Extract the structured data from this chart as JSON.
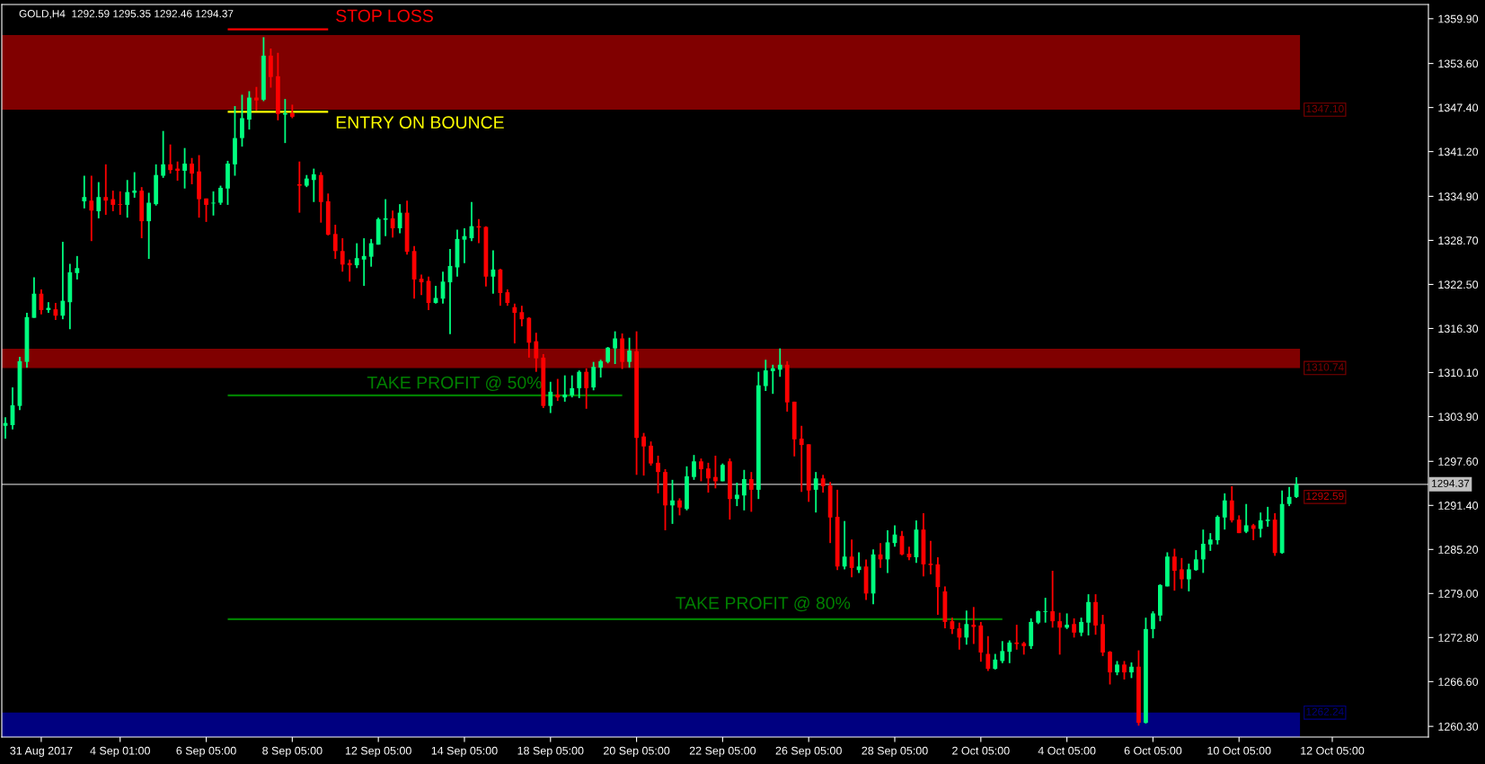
{
  "chart_data": {
    "type": "candlestick",
    "title": "GOLD,H4  1292.59 1295.35 1292.46 1294.37",
    "categories": [
      null,
      null,
      null,
      null,
      null,
      "31 Aug 2017",
      null,
      null,
      null,
      null,
      null,
      null,
      null,
      null,
      null,
      null,
      "4 Sep 01:00",
      null,
      null,
      null,
      null,
      null,
      null,
      null,
      null,
      null,
      null,
      null,
      "6 Sep 05:00",
      null,
      null,
      null,
      null,
      null,
      null,
      null,
      null,
      null,
      null,
      null,
      "8 Sep 05:00",
      null,
      null,
      null,
      null,
      null,
      null,
      null,
      null,
      null,
      null,
      null,
      "12 Sep 05:00",
      null,
      null,
      null,
      null,
      null,
      null,
      null,
      null,
      null,
      null,
      null,
      "14 Sep 05:00",
      null,
      null,
      null,
      null,
      null,
      null,
      null,
      null,
      null,
      null,
      null,
      "18 Sep 05:00",
      null,
      null,
      null,
      null,
      null,
      null,
      null,
      null,
      null,
      null,
      null,
      "20 Sep 05:00",
      null,
      null,
      null,
      null,
      null,
      null,
      null,
      null,
      null,
      null,
      null,
      "22 Sep 05:00",
      null,
      null,
      null,
      null,
      null,
      null,
      null,
      null,
      null,
      null,
      null,
      "26 Sep 05:00",
      null,
      null,
      null,
      null,
      null,
      null,
      null,
      null,
      null,
      null,
      null,
      "28 Sep 05:00",
      null,
      null,
      null,
      null,
      null,
      null,
      null,
      null,
      null,
      null,
      null,
      "2 Oct 05:00",
      null,
      null,
      null,
      null,
      null,
      null,
      null,
      null,
      null,
      null,
      null,
      "4 Oct 05:00",
      null,
      null,
      null,
      null,
      null,
      null,
      null,
      null,
      null,
      null,
      null,
      "6 Oct 05:00",
      null,
      null,
      null,
      null,
      null,
      null,
      null,
      null,
      null,
      null,
      null,
      "10 Oct 05:00",
      null,
      null,
      null,
      null,
      null,
      null,
      null,
      null,
      null,
      null,
      null,
      null,
      "12 Oct 05:00",
      null,
      null,
      null,
      null,
      null,
      null,
      null,
      null,
      null,
      null,
      null,
      null,
      null
    ],
    "ohlc": [
      [
        1302.6,
        1303.8,
        1300.8,
        1303.0
      ],
      [
        1302.7,
        1308.0,
        1302.1,
        1305.5
      ],
      [
        1305.4,
        1312.3,
        1304.8,
        1311.7
      ],
      [
        1311.6,
        1318.5,
        1310.8,
        1317.9
      ],
      [
        1317.8,
        1323.5,
        1317.8,
        1321.2
      ],
      [
        1321.2,
        1321.8,
        1318.3,
        1318.9
      ],
      [
        1318.9,
        1320.0,
        1318.5,
        1319.2
      ],
      [
        1319.0,
        1319.9,
        1317.5,
        1318.1
      ],
      [
        1318.1,
        1328.5,
        1317.6,
        1320.2
      ],
      [
        1320.0,
        1325.4,
        1316.2,
        1324.2
      ],
      [
        1324.1,
        1326.5,
        1323.2,
        1324.8
      ],
      [
        1334.2,
        1337.8,
        1333.2,
        1334.8
      ],
      [
        1334.3,
        1337.8,
        1328.6,
        1332.9
      ],
      [
        1332.8,
        1336.9,
        1331.8,
        1334.8
      ],
      [
        1334.8,
        1339.4,
        1332.3,
        1334.3
      ],
      [
        1334.5,
        1335.7,
        1332.8,
        1333.7
      ],
      [
        1333.8,
        1335.6,
        1332.3,
        1333.7
      ],
      [
        1333.7,
        1337.2,
        1331.9,
        1335.5
      ],
      [
        1335.4,
        1338.3,
        1334.7,
        1335.7
      ],
      [
        1335.7,
        1336.2,
        1329.0,
        1331.4
      ],
      [
        1331.4,
        1335.4,
        1326.1,
        1334.0
      ],
      [
        1333.8,
        1339.4,
        1333.6,
        1337.9
      ],
      [
        1337.8,
        1344.1,
        1337.5,
        1339.4
      ],
      [
        1339.4,
        1342.2,
        1338.1,
        1338.6
      ],
      [
        1338.8,
        1339.8,
        1337.1,
        1338.5
      ],
      [
        1338.5,
        1341.7,
        1336.0,
        1339.5
      ],
      [
        1339.5,
        1340.3,
        1336.6,
        1338.1
      ],
      [
        1338.4,
        1340.7,
        1331.9,
        1334.5
      ],
      [
        1334.6,
        1334.6,
        1331.3,
        1333.7
      ],
      [
        1333.9,
        1335.6,
        1332.2,
        1334.0
      ],
      [
        1334.0,
        1336.4,
        1333.7,
        1336.1
      ],
      [
        1336.0,
        1339.9,
        1333.7,
        1339.5
      ],
      [
        1339.4,
        1347.6,
        1337.8,
        1343.1
      ],
      [
        1343.1,
        1349.2,
        1341.9,
        1345.9
      ],
      [
        1345.7,
        1349.7,
        1344.3,
        1348.8
      ],
      [
        1348.8,
        1350.3,
        1347.0,
        1348.4
      ],
      [
        1348.5,
        1357.3,
        1348.3,
        1354.7
      ],
      [
        1354.7,
        1355.7,
        1350.2,
        1351.7
      ],
      [
        1351.8,
        1355.1,
        1345.6,
        1346.5
      ],
      [
        1346.4,
        1348.6,
        1342.4,
        1346.6
      ],
      [
        1346.6,
        1347.8,
        1345.9,
        1346.1
      ],
      [
        1336.6,
        1339.8,
        1332.6,
        1336.4
      ],
      [
        1336.4,
        1337.9,
        1336.2,
        1337.4
      ],
      [
        1337.2,
        1338.8,
        1334.1,
        1338.0
      ],
      [
        1337.9,
        1338.3,
        1331.2,
        1334.1
      ],
      [
        1334.2,
        1335.3,
        1329.4,
        1329.5
      ],
      [
        1329.6,
        1330.9,
        1326.1,
        1327.2
      ],
      [
        1327.2,
        1329.0,
        1324.3,
        1325.3
      ],
      [
        1325.5,
        1326.0,
        1322.9,
        1325.2
      ],
      [
        1325.2,
        1328.3,
        1324.8,
        1326.2
      ],
      [
        1326.0,
        1329.0,
        1322.3,
        1326.5
      ],
      [
        1326.4,
        1328.9,
        1325.0,
        1328.3
      ],
      [
        1328.1,
        1331.9,
        1328.1,
        1331.7
      ],
      [
        1331.6,
        1334.5,
        1329.3,
        1331.8
      ],
      [
        1331.8,
        1332.9,
        1329.1,
        1330.4
      ],
      [
        1330.4,
        1333.8,
        1329.7,
        1332.6
      ],
      [
        1332.6,
        1334.3,
        1326.7,
        1327.1
      ],
      [
        1327.2,
        1327.9,
        1320.5,
        1323.2
      ],
      [
        1323.3,
        1323.9,
        1321.0,
        1322.8
      ],
      [
        1323.0,
        1323.6,
        1318.9,
        1319.9
      ],
      [
        1319.9,
        1322.3,
        1319.8,
        1320.6
      ],
      [
        1320.5,
        1324.3,
        1319.8,
        1322.9
      ],
      [
        1322.8,
        1327.5,
        1315.5,
        1325.1
      ],
      [
        1324.9,
        1330.2,
        1323.6,
        1328.9
      ],
      [
        1328.8,
        1330.4,
        1325.5,
        1329.3
      ],
      [
        1329.0,
        1334.1,
        1328.6,
        1330.7
      ],
      [
        1330.7,
        1331.7,
        1328.3,
        1330.5
      ],
      [
        1330.6,
        1330.7,
        1322.2,
        1323.6
      ],
      [
        1323.6,
        1327.3,
        1321.2,
        1324.6
      ],
      [
        1324.6,
        1324.7,
        1319.5,
        1321.3
      ],
      [
        1321.4,
        1321.8,
        1319.5,
        1319.9
      ],
      [
        1319.3,
        1319.8,
        1314.2,
        1318.5
      ],
      [
        1318.6,
        1319.5,
        1316.6,
        1317.6
      ],
      [
        1317.8,
        1317.9,
        1312.2,
        1314.3
      ],
      [
        1314.5,
        1315.7,
        1310.2,
        1312.1
      ],
      [
        1312.2,
        1312.7,
        1305.1,
        1305.4
      ],
      [
        1305.4,
        1308.8,
        1304.4,
        1307.4
      ],
      [
        1307.0,
        1309.2,
        1306.1,
        1306.6
      ],
      [
        1306.6,
        1309.7,
        1306.0,
        1307.0
      ],
      [
        1306.9,
        1309.7,
        1306.6,
        1307.9
      ],
      [
        1307.9,
        1310.4,
        1306.5,
        1310.2
      ],
      [
        1310.2,
        1310.7,
        1305.0,
        1307.9
      ],
      [
        1308.0,
        1311.6,
        1307.6,
        1310.9
      ],
      [
        1310.8,
        1311.9,
        1309.4,
        1311.7
      ],
      [
        1311.6,
        1313.7,
        1311.4,
        1313.6
      ],
      [
        1313.5,
        1315.9,
        1311.3,
        1314.9
      ],
      [
        1314.9,
        1315.6,
        1310.6,
        1311.6
      ],
      [
        1311.6,
        1315.0,
        1310.8,
        1313.2
      ],
      [
        1313.1,
        1315.9,
        1295.7,
        1300.9
      ],
      [
        1301.1,
        1301.6,
        1295.6,
        1299.7
      ],
      [
        1299.8,
        1300.4,
        1297.0,
        1297.3
      ],
      [
        1297.4,
        1298.4,
        1293.1,
        1296.1
      ],
      [
        1296.1,
        1296.5,
        1287.9,
        1291.4
      ],
      [
        1291.4,
        1295.0,
        1288.8,
        1292.1
      ],
      [
        1292.1,
        1292.4,
        1290.0,
        1291.1
      ],
      [
        1290.9,
        1296.9,
        1290.7,
        1295.5
      ],
      [
        1295.4,
        1298.5,
        1295.0,
        1297.6
      ],
      [
        1297.6,
        1298.0,
        1294.8,
        1296.5
      ],
      [
        1296.6,
        1297.4,
        1293.2,
        1295.2
      ],
      [
        1295.4,
        1298.4,
        1293.8,
        1294.8
      ],
      [
        1294.8,
        1297.3,
        1294.8,
        1297.1
      ],
      [
        1297.6,
        1298.0,
        1289.4,
        1292.3
      ],
      [
        1292.3,
        1294.6,
        1291.3,
        1292.9
      ],
      [
        1292.8,
        1296.4,
        1290.7,
        1295.1
      ],
      [
        1295.1,
        1296.1,
        1290.5,
        1293.6
      ],
      [
        1293.6,
        1310.2,
        1292.3,
        1308.3
      ],
      [
        1308.2,
        1311.9,
        1307.5,
        1310.4
      ],
      [
        1310.3,
        1311.2,
        1307.1,
        1310.7
      ],
      [
        1310.5,
        1313.5,
        1309.5,
        1311.2
      ],
      [
        1311.2,
        1311.7,
        1304.6,
        1305.9
      ],
      [
        1306.0,
        1306.0,
        1298.3,
        1300.7
      ],
      [
        1300.8,
        1302.6,
        1293.3,
        1299.9
      ],
      [
        1300.0,
        1300.0,
        1291.9,
        1293.5
      ],
      [
        1293.6,
        1296.1,
        1290.4,
        1295.2
      ],
      [
        1295.2,
        1295.7,
        1293.2,
        1294.1
      ],
      [
        1294.2,
        1294.7,
        1286.1,
        1289.7
      ],
      [
        1289.8,
        1293.6,
        1282.3,
        1282.8
      ],
      [
        1282.8,
        1289.2,
        1282.4,
        1284.2
      ],
      [
        1284.2,
        1286.6,
        1281.3,
        1282.6
      ],
      [
        1282.3,
        1284.8,
        1281.9,
        1282.8
      ],
      [
        1282.8,
        1283.8,
        1278.1,
        1279.0
      ],
      [
        1279.0,
        1285.2,
        1277.5,
        1284.5
      ],
      [
        1284.5,
        1286.1,
        1282.6,
        1283.8
      ],
      [
        1283.8,
        1287.9,
        1281.9,
        1286.2
      ],
      [
        1286.1,
        1288.6,
        1285.6,
        1287.3
      ],
      [
        1287.1,
        1287.8,
        1284.4,
        1284.5
      ],
      [
        1284.6,
        1285.6,
        1283.7,
        1284.1
      ],
      [
        1284.1,
        1289.3,
        1283.3,
        1288.0
      ],
      [
        1288.0,
        1290.3,
        1281.4,
        1283.1
      ],
      [
        1283.2,
        1286.4,
        1281.7,
        1283.0
      ],
      [
        1283.1,
        1284.1,
        1276.0,
        1279.9
      ],
      [
        1279.3,
        1280.0,
        1274.1,
        1275.0
      ],
      [
        1275.1,
        1275.6,
        1273.3,
        1274.0
      ],
      [
        1274.1,
        1274.9,
        1271.1,
        1272.8
      ],
      [
        1272.8,
        1276.6,
        1271.8,
        1274.7
      ],
      [
        1274.6,
        1277.1,
        1271.9,
        1274.3
      ],
      [
        1274.5,
        1275.0,
        1269.4,
        1270.7
      ],
      [
        1270.5,
        1273.0,
        1268.1,
        1268.4
      ],
      [
        1268.4,
        1270.5,
        1268.3,
        1269.7
      ],
      [
        1269.5,
        1272.3,
        1269.2,
        1270.9
      ],
      [
        1270.8,
        1272.4,
        1269.2,
        1272.1
      ],
      [
        1272.1,
        1274.6,
        1271.1,
        1271.9
      ],
      [
        1272.0,
        1272.2,
        1270.4,
        1271.6
      ],
      [
        1271.6,
        1275.5,
        1271.2,
        1275.0
      ],
      [
        1274.9,
        1276.6,
        1274.7,
        1276.5
      ],
      [
        1276.4,
        1278.4,
        1274.9,
        1276.5
      ],
      [
        1276.5,
        1282.2,
        1274.2,
        1275.1
      ],
      [
        1275.1,
        1276.3,
        1270.4,
        1274.2
      ],
      [
        1274.2,
        1276.2,
        1274.0,
        1274.6
      ],
      [
        1274.7,
        1275.5,
        1272.8,
        1273.5
      ],
      [
        1273.5,
        1275.6,
        1273.0,
        1275.0
      ],
      [
        1274.9,
        1278.9,
        1273.1,
        1277.8
      ],
      [
        1277.8,
        1278.9,
        1273.2,
        1274.5
      ],
      [
        1274.7,
        1276.0,
        1270.2,
        1270.7
      ],
      [
        1270.8,
        1270.9,
        1266.2,
        1267.9
      ],
      [
        1267.9,
        1269.5,
        1267.5,
        1269.0
      ],
      [
        1269.0,
        1269.5,
        1266.9,
        1267.9
      ],
      [
        1267.9,
        1269.3,
        1267.1,
        1268.7
      ],
      [
        1268.7,
        1271.0,
        1260.4,
        1260.8
      ],
      [
        1260.8,
        1275.6,
        1260.7,
        1274.0
      ],
      [
        1274.0,
        1276.5,
        1272.7,
        1276.2
      ],
      [
        1275.9,
        1280.3,
        1275.1,
        1280.2
      ],
      [
        1280.0,
        1284.8,
        1280.0,
        1284.2
      ],
      [
        1284.2,
        1285.3,
        1279.4,
        1282.2
      ],
      [
        1282.4,
        1284.0,
        1279.7,
        1281.0
      ],
      [
        1281.0,
        1283.2,
        1279.3,
        1282.4
      ],
      [
        1282.3,
        1285.1,
        1282.2,
        1283.8
      ],
      [
        1283.8,
        1288.0,
        1281.9,
        1286.0
      ],
      [
        1285.9,
        1287.5,
        1285.0,
        1286.6
      ],
      [
        1286.5,
        1290.0,
        1285.9,
        1289.8
      ],
      [
        1289.7,
        1293.1,
        1288.0,
        1292.1
      ],
      [
        1292.1,
        1294.1,
        1289.0,
        1289.3
      ],
      [
        1289.4,
        1290.0,
        1287.5,
        1287.5
      ],
      [
        1287.7,
        1291.6,
        1287.5,
        1288.6
      ],
      [
        1288.6,
        1288.8,
        1286.5,
        1288.1
      ],
      [
        1288.1,
        1290.4,
        1286.9,
        1289.3
      ],
      [
        1289.2,
        1291.2,
        1288.4,
        1289.4
      ],
      [
        1289.4,
        1290.3,
        1284.3,
        1284.7
      ],
      [
        1284.7,
        1293.5,
        1284.6,
        1291.6
      ],
      [
        1291.6,
        1294.0,
        1291.3,
        1292.6
      ],
      [
        1292.59,
        1295.35,
        1292.46,
        1294.37
      ],
      null,
      null,
      null,
      null,
      null,
      null,
      null,
      null,
      null,
      null,
      null,
      null,
      null,
      null,
      null,
      null,
      null,
      null
    ],
    "colors": [
      "#00ff7f",
      "#00ff7f",
      "#00ff7f",
      "#00ff7f",
      "#00ff7f",
      "#ff0000",
      "#00ff7f",
      "#ff0000",
      "#00ff7f",
      "#00ff7f",
      "#00ff7f",
      "#00ff7f",
      "#ff0000",
      "#00ff7f",
      "#ff0000",
      "#ff0000",
      "#ff0000",
      "#00ff7f",
      "#00ff7f",
      "#ff0000",
      "#00ff7f",
      "#00ff7f",
      "#00ff7f",
      "#ff0000",
      "#ff0000",
      "#00ff7f",
      "#ff0000",
      "#ff0000",
      "#ff0000",
      "#00ff7f",
      "#00ff7f",
      "#00ff7f",
      "#00ff7f",
      "#00ff7f",
      "#00ff7f",
      "#ff0000",
      "#00ff7f",
      "#ff0000",
      "#ff0000",
      "#00ff7f",
      "#ff0000",
      "#ff0000",
      "#00ff7f",
      "#00ff7f",
      "#ff0000",
      "#ff0000",
      "#ff0000",
      "#ff0000",
      "#ff0000",
      "#00ff7f",
      "#00ff7f",
      "#00ff7f",
      "#00ff7f",
      "#00ff7f",
      "#ff0000",
      "#00ff7f",
      "#ff0000",
      "#ff0000",
      "#ff0000",
      "#ff0000",
      "#00ff7f",
      "#00ff7f",
      "#00ff7f",
      "#00ff7f",
      "#00ff7f",
      "#00ff7f",
      "#ff0000",
      "#ff0000",
      "#00ff7f",
      "#ff0000",
      "#ff0000",
      "#ff0000",
      "#ff0000",
      "#ff0000",
      "#ff0000",
      "#ff0000",
      "#00ff7f",
      "#ff0000",
      "#00ff7f",
      "#00ff7f",
      "#00ff7f",
      "#ff0000",
      "#00ff7f",
      "#00ff7f",
      "#00ff7f",
      "#00ff7f",
      "#ff0000",
      "#00ff7f",
      "#ff0000",
      "#ff0000",
      "#ff0000",
      "#ff0000",
      "#ff0000",
      "#00ff7f",
      "#ff0000",
      "#00ff7f",
      "#00ff7f",
      "#ff0000",
      "#ff0000",
      "#ff0000",
      "#00ff7f",
      "#ff0000",
      "#00ff7f",
      "#00ff7f",
      "#ff0000",
      "#00ff7f",
      "#00ff7f",
      "#00ff7f",
      "#00ff7f",
      "#ff0000",
      "#ff0000",
      "#ff0000",
      "#ff0000",
      "#00ff7f",
      "#ff0000",
      "#ff0000",
      "#ff0000",
      "#00ff7f",
      "#ff0000",
      "#00ff7f",
      "#ff0000",
      "#00ff7f",
      "#ff0000",
      "#00ff7f",
      "#00ff7f",
      "#ff0000",
      "#ff0000",
      "#00ff7f",
      "#ff0000",
      "#ff0000",
      "#ff0000",
      "#ff0000",
      "#ff0000",
      "#ff0000",
      "#00ff7f",
      "#ff0000",
      "#ff0000",
      "#ff0000",
      "#00ff7f",
      "#00ff7f",
      "#00ff7f",
      "#ff0000",
      "#ff0000",
      "#00ff7f",
      "#00ff7f",
      "#00ff7f",
      "#ff0000",
      "#ff0000",
      "#00ff7f",
      "#ff0000",
      "#00ff7f",
      "#00ff7f",
      "#ff0000",
      "#ff0000",
      "#ff0000",
      "#00ff7f",
      "#ff0000",
      "#00ff7f",
      "#ff0000",
      "#00ff7f",
      "#00ff7f",
      "#00ff7f",
      "#00ff7f",
      "#ff0000",
      "#ff0000",
      "#00ff7f",
      "#00ff7f",
      "#00ff7f",
      "#00ff7f",
      "#00ff7f",
      "#00ff7f",
      "#ff0000",
      "#ff0000",
      "#00ff7f",
      "#ff0000",
      "#00ff7f",
      "#00ff7f",
      "#ff0000",
      "#00ff7f",
      "#00ff7f",
      "#00ff7f",
      null,
      null,
      null,
      null,
      null,
      null,
      null,
      null,
      null,
      null,
      null,
      null,
      null,
      null,
      null,
      null,
      null,
      null
    ],
    "series": [
      {
        "type": "line",
        "name": "STOP LOSS",
        "color": "#ff0000",
        "values": [
          null,
          null,
          null,
          null,
          null,
          null,
          null,
          null,
          null,
          null,
          null,
          null,
          null,
          null,
          null,
          null,
          null,
          null,
          null,
          null,
          null,
          null,
          null,
          null,
          null,
          null,
          null,
          null,
          null,
          null,
          null,
          1358.4,
          1358.4,
          1358.4,
          1358.4,
          1358.4,
          1358.4,
          1358.4,
          1358.4,
          1358.4,
          1358.4,
          1358.4,
          1358.4,
          1358.4,
          1358.4,
          1358.4,
          null,
          null,
          null,
          null,
          null,
          null,
          null,
          null,
          null,
          null,
          null,
          null,
          null,
          null,
          null,
          null,
          null,
          null,
          null,
          null,
          null,
          null,
          null,
          null,
          null,
          null,
          null,
          null,
          null,
          null,
          null,
          null,
          null,
          null,
          null,
          null,
          null,
          null,
          null,
          null,
          null,
          null,
          null,
          null,
          null,
          null,
          null,
          null,
          null,
          null,
          null,
          null,
          null,
          null,
          null,
          null,
          null,
          null,
          null,
          null,
          null,
          null,
          null,
          null,
          null,
          null,
          null,
          null,
          null,
          null,
          null,
          null,
          null,
          null,
          null,
          null,
          null,
          null,
          null,
          null,
          null,
          null,
          null,
          null,
          null,
          null,
          null,
          null,
          null,
          null,
          null,
          null,
          null,
          null,
          null,
          null,
          null,
          null,
          null,
          null,
          null,
          null,
          null,
          null,
          null,
          null,
          null,
          null,
          null,
          null,
          null,
          null,
          null,
          null,
          null,
          null,
          null,
          null,
          null,
          null,
          null,
          null,
          null,
          null,
          null,
          null,
          null,
          null,
          null,
          null,
          null,
          null,
          null,
          null,
          null,
          null,
          null,
          null,
          null,
          null,
          null,
          null,
          null,
          null,
          null,
          null,
          null,
          null,
          null,
          null,
          null,
          null,
          null
        ]
      },
      {
        "type": "line",
        "name": "ENTRY ON BOUNCE",
        "color": "#ffff00",
        "values": [
          null,
          null,
          null,
          null,
          null,
          null,
          null,
          null,
          null,
          null,
          null,
          null,
          null,
          null,
          null,
          null,
          null,
          null,
          null,
          null,
          null,
          null,
          null,
          null,
          null,
          null,
          null,
          null,
          null,
          null,
          null,
          1346.8,
          1346.8,
          1346.8,
          1346.8,
          1346.8,
          1346.8,
          1346.8,
          1346.8,
          1346.8,
          1346.8,
          1346.8,
          1346.8,
          1346.8,
          1346.8,
          1346.8,
          null,
          null,
          null,
          null,
          null,
          null,
          null,
          null,
          null,
          null,
          null,
          null,
          null,
          null,
          null,
          null,
          null,
          null,
          null,
          null,
          null,
          null,
          null,
          null,
          null,
          null,
          null,
          null,
          null,
          null,
          null,
          null,
          null,
          null,
          null,
          null,
          null,
          null,
          null,
          null,
          null,
          null,
          null,
          null,
          null,
          null,
          null,
          null,
          null,
          null,
          null,
          null,
          null,
          null,
          null,
          null,
          null,
          null,
          null,
          null,
          null,
          null,
          null,
          null,
          null,
          null,
          null,
          null,
          null,
          null,
          null,
          null,
          null,
          null,
          null,
          null,
          null,
          null,
          null,
          null,
          null,
          null,
          null,
          null,
          null,
          null,
          null,
          null,
          null,
          null,
          null,
          null,
          null,
          null,
          null,
          null,
          null,
          null,
          null,
          null,
          null,
          null,
          null,
          null,
          null,
          null,
          null,
          null,
          null,
          null,
          null,
          null,
          null,
          null,
          null,
          null,
          null,
          null,
          null,
          null,
          null,
          null,
          null,
          null,
          null,
          null,
          null,
          null,
          null,
          null,
          null,
          null,
          null,
          null,
          null,
          null,
          null,
          null,
          null,
          null,
          null,
          null,
          null,
          null,
          null,
          null,
          null,
          null,
          null,
          null,
          null,
          null,
          null
        ]
      },
      {
        "type": "line",
        "name": "TAKE PROFIT @ 50%",
        "color": "#008000",
        "values": [
          null,
          null,
          null,
          null,
          null,
          null,
          null,
          null,
          null,
          null,
          null,
          null,
          null,
          null,
          null,
          null,
          null,
          null,
          null,
          null,
          null,
          null,
          null,
          null,
          null,
          null,
          null,
          null,
          null,
          null,
          null,
          1306.9,
          1306.9,
          1306.9,
          1306.9,
          1306.9,
          1306.9,
          1306.9,
          1306.9,
          1306.9,
          1306.9,
          1306.9,
          1306.9,
          1306.9,
          1306.9,
          1306.9,
          1306.9,
          1306.9,
          1306.9,
          1306.9,
          1306.9,
          1306.9,
          1306.9,
          1306.9,
          1306.9,
          1306.9,
          1306.9,
          1306.9,
          1306.9,
          1306.9,
          1306.9,
          1306.9,
          1306.9,
          1306.9,
          1306.9,
          1306.9,
          1306.9,
          1306.9,
          1306.9,
          1306.9,
          1306.9,
          1306.9,
          1306.9,
          1306.9,
          1306.9,
          1306.9,
          1306.9,
          1306.9,
          1306.9,
          1306.9,
          1306.9,
          1306.9,
          1306.9,
          1306.9,
          1306.9,
          1306.9,
          1306.9,
          null,
          null,
          null,
          null,
          null,
          null,
          null,
          null,
          null,
          null,
          null,
          null,
          null,
          null,
          null,
          null,
          null,
          null,
          null,
          null,
          null,
          null,
          null,
          null,
          null,
          null,
          null,
          null,
          null,
          null,
          null,
          null,
          null,
          null,
          null,
          null,
          null,
          null,
          null,
          null,
          null,
          null,
          null,
          null,
          null,
          null,
          null,
          null,
          null,
          null,
          null,
          null,
          null,
          null,
          null,
          null,
          null,
          null,
          null,
          null,
          null,
          null,
          null,
          null,
          null,
          null,
          null,
          null,
          null,
          null,
          null,
          null,
          null,
          null,
          null,
          null,
          null,
          null,
          null,
          null,
          null,
          null,
          null,
          null,
          null,
          null,
          null,
          null,
          null,
          null,
          null,
          null,
          null,
          null,
          null,
          null,
          null,
          null,
          null,
          null,
          null,
          null,
          null,
          null,
          null,
          null,
          null,
          null,
          null,
          null,
          null,
          null
        ]
      },
      {
        "type": "line",
        "name": "TAKE PROFIT @ 80%",
        "color": "#008000",
        "values": [
          null,
          null,
          null,
          null,
          null,
          null,
          null,
          null,
          null,
          null,
          null,
          null,
          null,
          null,
          null,
          null,
          null,
          null,
          null,
          null,
          null,
          null,
          null,
          null,
          null,
          null,
          null,
          null,
          null,
          null,
          null,
          1275.4,
          1275.4,
          1275.4,
          1275.4,
          1275.4,
          1275.4,
          1275.4,
          1275.4,
          1275.4,
          1275.4,
          1275.4,
          1275.4,
          1275.4,
          1275.4,
          1275.4,
          1275.4,
          1275.4,
          1275.4,
          1275.4,
          1275.4,
          1275.4,
          1275.4,
          1275.4,
          1275.4,
          1275.4,
          1275.4,
          1275.4,
          1275.4,
          1275.4,
          1275.4,
          1275.4,
          1275.4,
          1275.4,
          1275.4,
          1275.4,
          1275.4,
          1275.4,
          1275.4,
          1275.4,
          1275.4,
          1275.4,
          1275.4,
          1275.4,
          1275.4,
          1275.4,
          1275.4,
          1275.4,
          1275.4,
          1275.4,
          1275.4,
          1275.4,
          1275.4,
          1275.4,
          1275.4,
          1275.4,
          1275.4,
          1275.4,
          1275.4,
          1275.4,
          1275.4,
          1275.4,
          1275.4,
          1275.4,
          1275.4,
          1275.4,
          1275.4,
          1275.4,
          1275.4,
          1275.4,
          1275.4,
          1275.4,
          1275.4,
          1275.4,
          1275.4,
          1275.4,
          1275.4,
          1275.4,
          1275.4,
          1275.4,
          1275.4,
          1275.4,
          1275.4,
          1275.4,
          1275.4,
          1275.4,
          1275.4,
          1275.4,
          1275.4,
          1275.4,
          1275.4,
          1275.4,
          1275.4,
          1275.4,
          1275.4,
          1275.4,
          1275.4,
          1275.4,
          1275.4,
          1275.4,
          1275.4,
          1275.4,
          1275.4,
          1275.4,
          1275.4,
          1275.4,
          1275.4,
          1275.4,
          1275.4,
          1275.4,
          null,
          null,
          null,
          null,
          null,
          null,
          null,
          null,
          null,
          null,
          null,
          null,
          null,
          null,
          null,
          null,
          null,
          null,
          null,
          null,
          null,
          null,
          null,
          null,
          null,
          null,
          null,
          null,
          null,
          null,
          null,
          null,
          null,
          null,
          null,
          null,
          null,
          null,
          null,
          null,
          null,
          null,
          null,
          null,
          null,
          null,
          null,
          null,
          null,
          null,
          null,
          null,
          null,
          null,
          null,
          null,
          null,
          null,
          null
        ]
      }
    ],
    "bands": [
      {
        "axis": "y",
        "from": 1347.1,
        "to": 1357.6,
        "label": "1347.10",
        "color": "#800000"
      },
      {
        "axis": "y",
        "from": 1310.74,
        "to": 1313.45,
        "label": "1310.74",
        "color": "#800000"
      },
      {
        "axis": "y",
        "from": 1258.8,
        "to": 1262.24,
        "label": "1262.24",
        "color": "#000080"
      }
    ],
    "ref_lines": [
      {
        "axis": "y",
        "value": 1294.37,
        "label": "1294.37",
        "color": "#c0c0c0"
      }
    ],
    "annotations": [
      "1292.59"
    ],
    "ylim": [
      1258.8,
      1361.9
    ],
    "yticks": [
      {
        "value": 1359.9,
        "label": "1359.90"
      },
      {
        "value": 1353.6,
        "label": "1353.60"
      },
      {
        "value": 1347.4,
        "label": "1347.40"
      },
      {
        "value": 1341.2,
        "label": "1341.20"
      },
      {
        "value": 1334.9,
        "label": "1334.90"
      },
      {
        "value": 1328.7,
        "label": "1328.70"
      },
      {
        "value": 1322.5,
        "label": "1322.50"
      },
      {
        "value": 1316.3,
        "label": "1316.30"
      },
      {
        "value": 1310.1,
        "label": "1310.10"
      },
      {
        "value": 1303.9,
        "label": "1303.90"
      },
      {
        "value": 1297.6,
        "label": "1297.60"
      },
      {
        "value": 1291.4,
        "label": "1291.40"
      },
      {
        "value": 1285.2,
        "label": "1285.20"
      },
      {
        "value": 1279.0,
        "label": "1279.00"
      },
      {
        "value": 1272.8,
        "label": "1272.80"
      },
      {
        "value": 1266.6,
        "label": "1266.60"
      },
      {
        "value": 1260.3,
        "label": "1260.30"
      }
    ]
  }
}
